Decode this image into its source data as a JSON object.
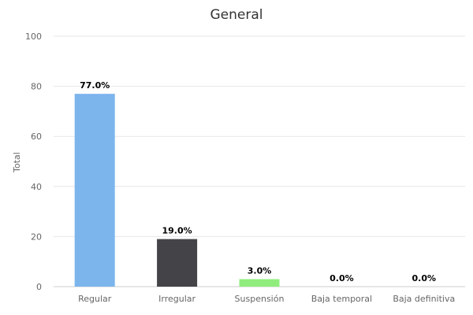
{
  "chart_data": {
    "type": "bar",
    "title": "General",
    "xlabel": "",
    "ylabel": "Total",
    "ylim": [
      0,
      100
    ],
    "yticks": [
      0,
      20,
      40,
      60,
      80,
      100
    ],
    "categories": [
      "Regular",
      "Irregular",
      "Suspensión",
      "Baja temporal",
      "Baja definitiva"
    ],
    "values": [
      77.0,
      19.0,
      3.0,
      0.0,
      0.0
    ],
    "data_labels": [
      "77.0%",
      "19.0%",
      "3.0%",
      "0.0%",
      "0.0%"
    ],
    "colors": [
      "#7cb5ec",
      "#434348",
      "#90ed7d",
      "#f7a35c",
      "#8085e9"
    ],
    "grid": true,
    "legend": "none"
  }
}
